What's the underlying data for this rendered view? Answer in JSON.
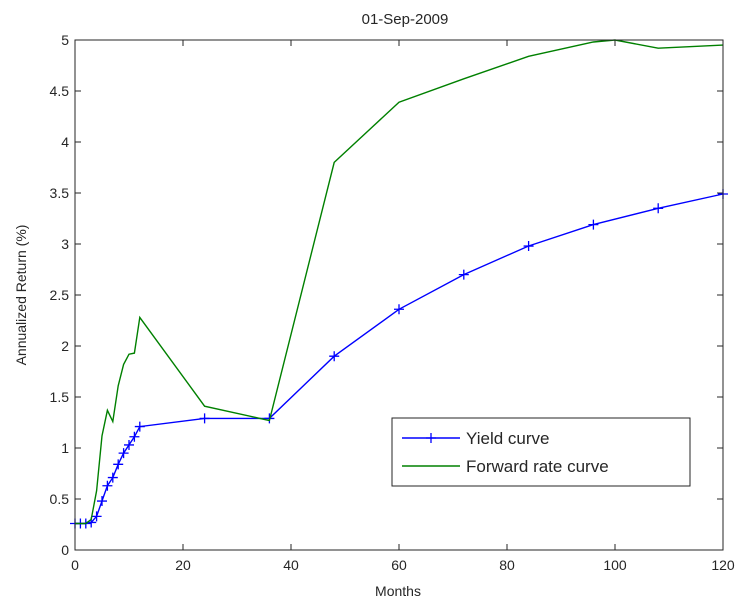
{
  "chart_data": {
    "type": "line",
    "title": "01-Sep-2009",
    "xlabel": "Months",
    "ylabel": "Annualized Return (%)",
    "xlim": [
      0,
      120
    ],
    "ylim": [
      0,
      5
    ],
    "xticks": [
      "0",
      "20",
      "40",
      "60",
      "80",
      "100",
      "120"
    ],
    "yticks": [
      "0",
      "0.5",
      "1",
      "1.5",
      "2",
      "2.5",
      "3",
      "3.5",
      "4",
      "4.5",
      "5"
    ],
    "grid": false,
    "legend_position": "lower-right",
    "series": [
      {
        "name": "Yield curve",
        "color": "#0000ff",
        "marker": "+",
        "x": [
          0,
          1,
          2,
          3,
          4,
          5,
          6,
          7,
          8,
          9,
          10,
          11,
          12,
          24,
          36,
          48,
          60,
          72,
          84,
          96,
          108,
          120
        ],
        "y": [
          0.26,
          0.26,
          0.26,
          0.27,
          0.33,
          0.48,
          0.63,
          0.71,
          0.84,
          0.95,
          1.03,
          1.11,
          1.21,
          1.29,
          1.29,
          1.9,
          2.36,
          2.7,
          2.98,
          3.19,
          3.35,
          3.49
        ]
      },
      {
        "name": "Forward rate curve",
        "color": "#008000",
        "marker": "none",
        "x": [
          0,
          1,
          2,
          3,
          4,
          5,
          6,
          7,
          8,
          9,
          10,
          11,
          12,
          24,
          36,
          48,
          60,
          72,
          84,
          96,
          100,
          108,
          120
        ],
        "y": [
          0.26,
          0.26,
          0.26,
          0.3,
          0.58,
          1.12,
          1.37,
          1.26,
          1.61,
          1.82,
          1.92,
          1.93,
          2.28,
          1.41,
          1.27,
          3.8,
          4.39,
          4.62,
          4.84,
          4.98,
          5.0,
          4.92,
          4.95
        ]
      }
    ]
  }
}
